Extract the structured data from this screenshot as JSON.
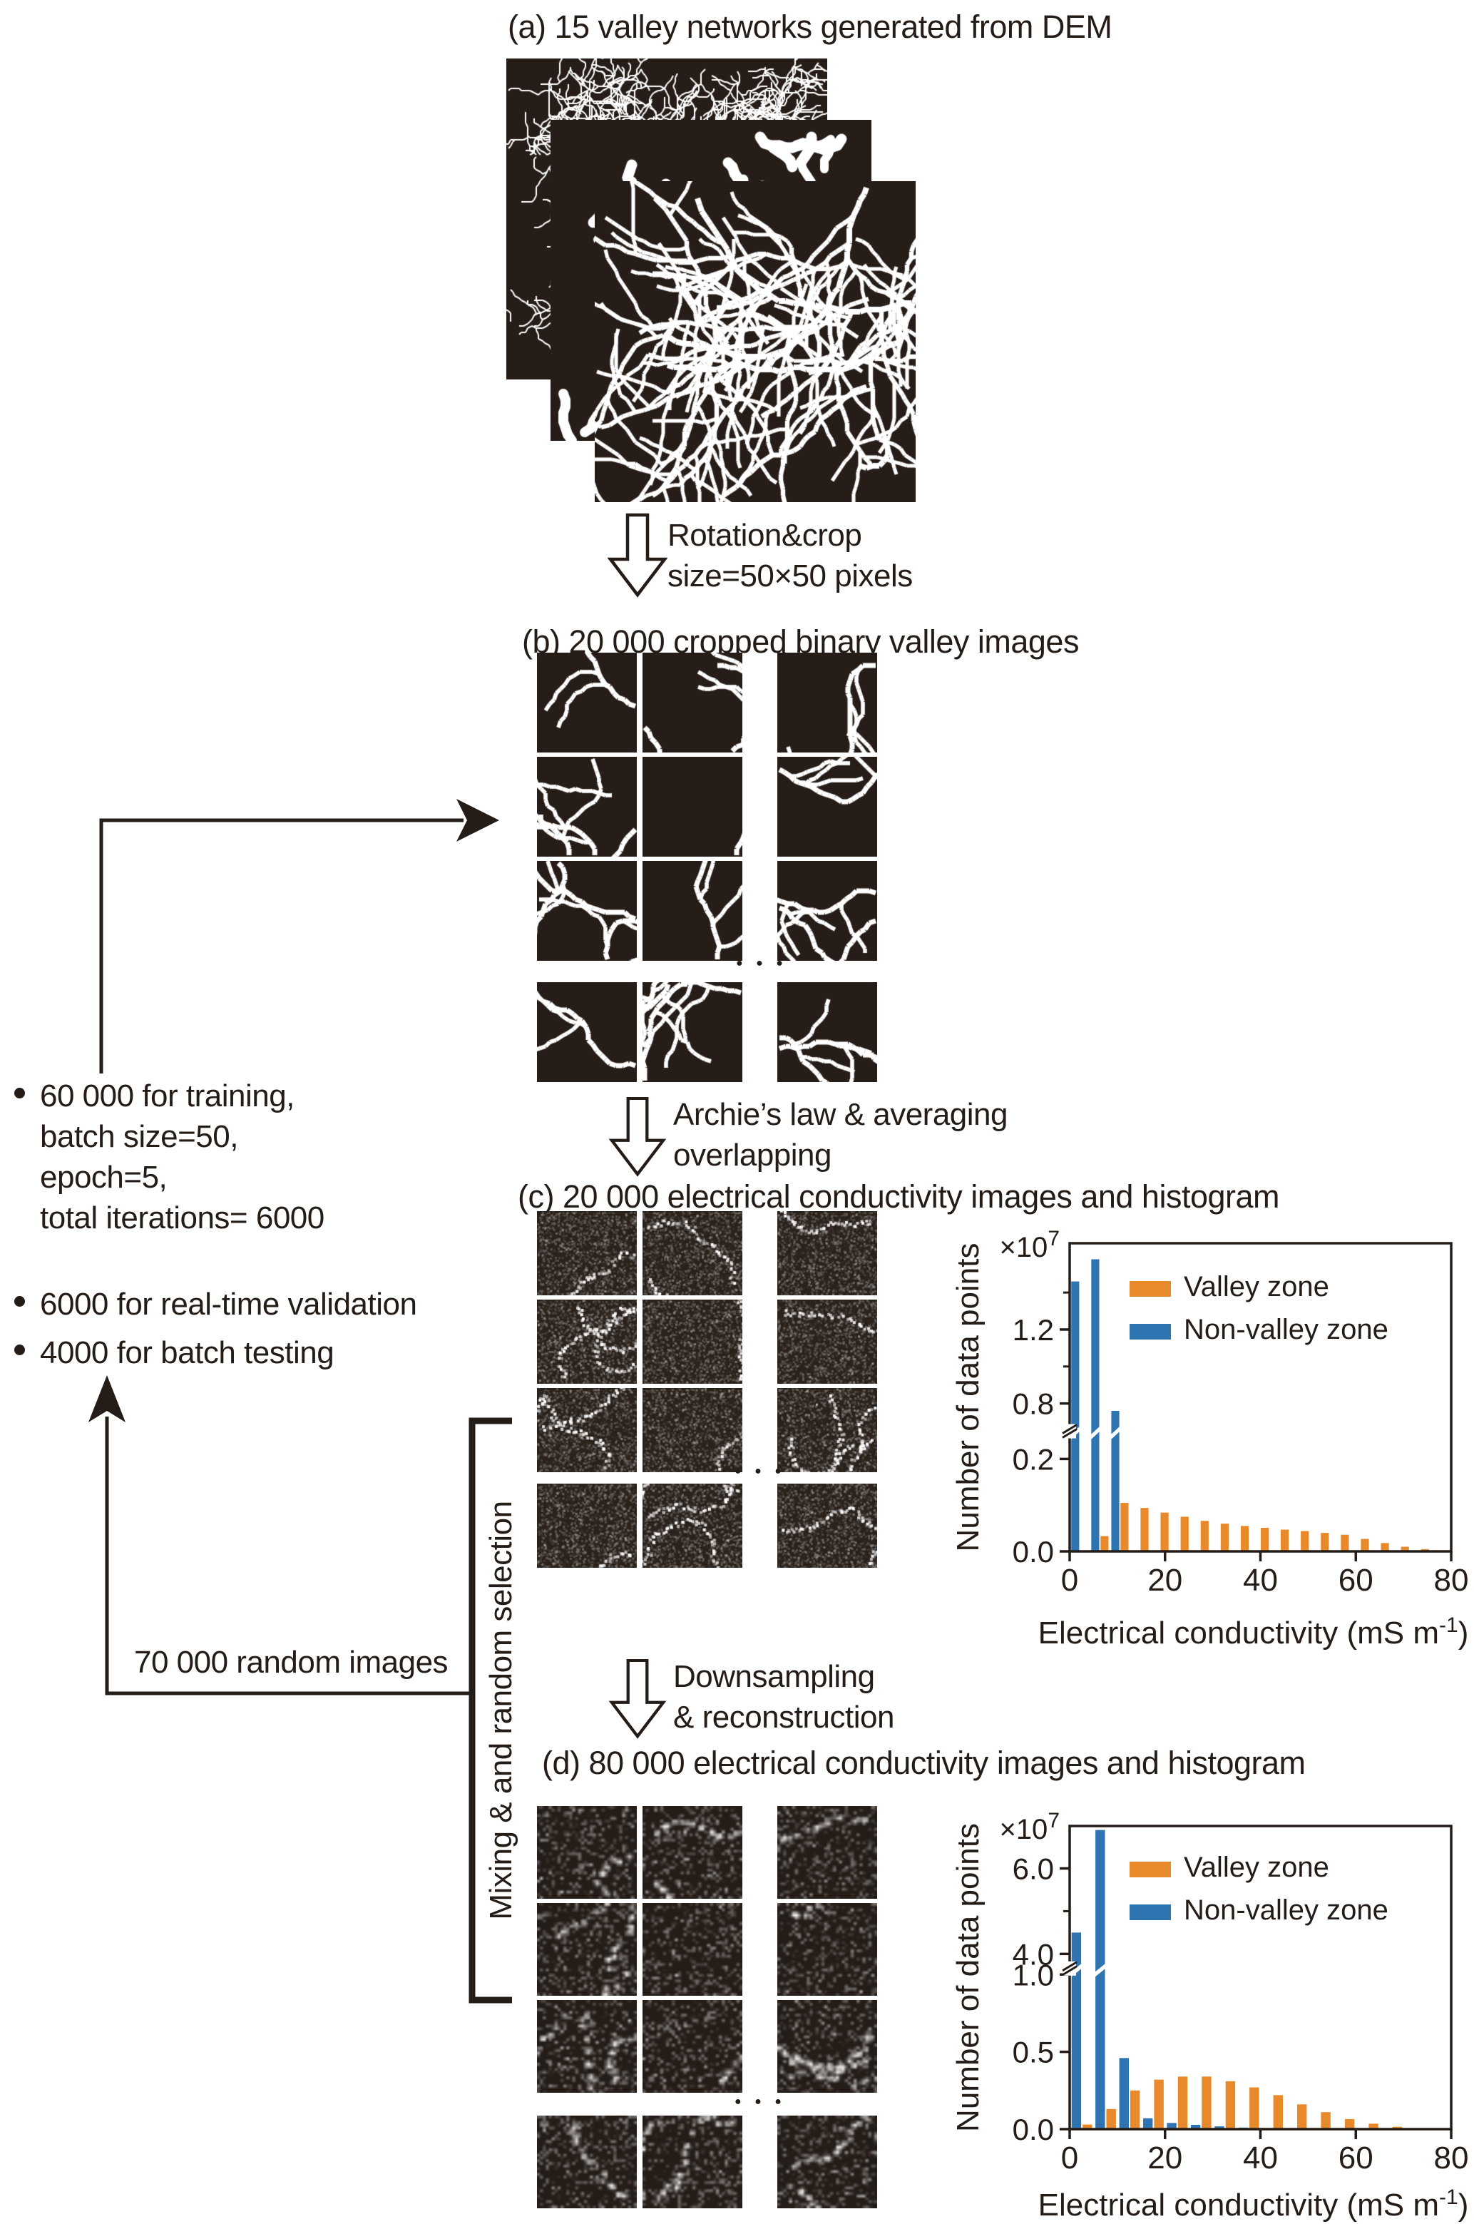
{
  "figure": {
    "panel_a": {
      "title": "(a) 15 valley networks generated from DEM"
    },
    "rotation": {
      "line1": "Rotation&crop",
      "line2": "size=50×50 pixels"
    },
    "panel_b": {
      "title": "(b) 20 000 cropped binary valley images"
    },
    "archie": {
      "line1": "Archie’s law & averaging",
      "line2": "overlapping"
    },
    "panel_c": {
      "title": "(c) 20 000 electrical conductivity images and histogram"
    },
    "downsampling": {
      "line1": "Downsampling",
      "line2": "& reconstruction"
    },
    "panel_d": {
      "title": "(d) 80 000 electrical conductivity images and histogram"
    },
    "bullets": [
      {
        "lines": [
          "60 000 for training,",
          "batch size=50,",
          "epoch=5,",
          "total iterations= 6000"
        ]
      },
      {
        "lines": [
          "6000 for real-time validation"
        ]
      },
      {
        "lines": [
          "4000 for batch testing"
        ]
      }
    ],
    "random_images_label": "70 000 random images",
    "mixing_label": "Mixing & and random selection",
    "ellipsis": "● ● ●"
  },
  "colors": {
    "ink": "#241c17",
    "valley_orange": "#E8892B",
    "nonvalley_blue": "#2E74B1",
    "tile_background": "#261d18"
  },
  "chart_data": [
    {
      "type": "bar",
      "panel": "c",
      "ylabel": "Number of data points",
      "xlabel": "Electrical conductivity (mS m",
      "xlabel_sup": "-1",
      "xlabel_end": ")",
      "scale": "×10",
      "scale_sup": "7",
      "legend": [
        {
          "label": "Valley zone",
          "color": "#E8892B"
        },
        {
          "label": "Non-valley zone",
          "color": "#2E74B1"
        }
      ],
      "x_ticks": [
        "0",
        "20",
        "40",
        "60",
        "80"
      ],
      "x_range": [
        0,
        80
      ],
      "bin_width": 4.2,
      "y_unit": "1e7",
      "y_ticks": [
        {
          "v": 0.0,
          "label": "0.0"
        },
        {
          "v": 0.2,
          "label": "0.2"
        },
        {
          "v": 0.8,
          "label": "0.8"
        },
        {
          "v": 1.2,
          "label": "1.2"
        }
      ],
      "y_minor_ticks": [
        1.0,
        1.4
      ],
      "y_break_between": [
        0.2,
        0.8
      ],
      "y_map": {
        "low_max": 0.25,
        "low_scale": 1.5,
        "break_lo": 0.38,
        "break_hi": 0.4,
        "up_v0": 0.8,
        "up_frac0": 0.48,
        "up_scale": 0.6
      },
      "series": [
        {
          "name": "Non-valley zone",
          "color": "#2E74B1",
          "values": [
            1.46,
            1.58,
            0.76,
            0,
            0,
            0,
            0,
            0,
            0,
            0,
            0,
            0,
            0,
            0,
            0,
            0,
            0,
            0,
            0
          ]
        },
        {
          "name": "Valley zone",
          "color": "#E8892B",
          "values": [
            0,
            0.033,
            0.105,
            0.094,
            0.084,
            0.075,
            0.066,
            0.06,
            0.055,
            0.051,
            0.047,
            0.044,
            0.04,
            0.036,
            0.027,
            0.018,
            0.01,
            0.005,
            0.002
          ]
        }
      ]
    },
    {
      "type": "bar",
      "panel": "d",
      "ylabel": "Number of data points",
      "xlabel": "Electrical conductivity (mS m",
      "xlabel_sup": "-1",
      "xlabel_end": ")",
      "scale": "×10",
      "scale_sup": "7",
      "legend": [
        {
          "label": "Valley zone",
          "color": "#E8892B"
        },
        {
          "label": "Non-valley zone",
          "color": "#2E74B1"
        }
      ],
      "x_ticks": [
        "0",
        "20",
        "40",
        "60",
        "80"
      ],
      "x_range": [
        0,
        80
      ],
      "bin_width": 5,
      "y_unit": "1e7",
      "y_ticks": [
        {
          "v": 0.0,
          "label": "0.0"
        },
        {
          "v": 0.5,
          "label": "0.5"
        },
        {
          "v": 1.0,
          "label": "1.0"
        },
        {
          "v": 4.0,
          "label": "4.0"
        },
        {
          "v": 6.0,
          "label": "6.0"
        }
      ],
      "y_minor_ticks": [
        5.0
      ],
      "y_break_between": [
        1.0,
        4.0
      ],
      "y_map": {
        "low_max": 1.0,
        "low_scale": 0.51,
        "break_lo": 0.51,
        "break_hi": 0.55,
        "up_v0": 4.0,
        "up_frac0": 0.578,
        "up_scale": 0.141
      },
      "series": [
        {
          "name": "Non-valley zone",
          "color": "#2E74B1",
          "values": [
            4.5,
            6.9,
            0.46,
            0.07,
            0.04,
            0.028,
            0.018,
            0.01,
            0.006,
            0.003,
            0,
            0,
            0,
            0,
            0,
            0
          ]
        },
        {
          "name": "Valley zone",
          "color": "#E8892B",
          "values": [
            0.03,
            0.13,
            0.25,
            0.32,
            0.34,
            0.34,
            0.31,
            0.27,
            0.22,
            0.16,
            0.11,
            0.065,
            0.035,
            0.015,
            0.007,
            0
          ]
        }
      ]
    }
  ]
}
